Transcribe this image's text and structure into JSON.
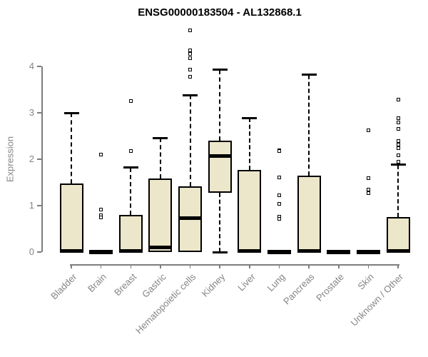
{
  "title": "ENSG00000183504 - AL132868.1",
  "colors": {
    "box_fill": "#ECE6CA",
    "box_border": "#000000",
    "axis": "#7d7d7d",
    "label_text": "#858585",
    "title_text": "#000000"
  },
  "chart_data": {
    "type": "boxplot",
    "title": "ENSG00000183504 - AL132868.1",
    "xlabel": "",
    "ylabel": "Expression",
    "yticks": [
      0,
      1,
      2,
      3,
      4
    ],
    "ylim": [
      0,
      4.85
    ],
    "grid": false,
    "legend": "none",
    "categories": [
      "Bladder",
      "Brain",
      "Breast",
      "Gastric",
      "Hematopoietic cells",
      "Kidney",
      "Liver",
      "Lung",
      "Pancreas",
      "Prostate",
      "Skin",
      "Unknown / Other"
    ],
    "series": [
      {
        "label": "Bladder",
        "q1": 0,
        "median": 0.02,
        "q3": 1.48,
        "whisker_low": 0,
        "whisker_high": 3.0,
        "outliers": []
      },
      {
        "label": "Brain",
        "q1": 0,
        "median": 0.01,
        "q3": 0.02,
        "whisker_low": 0,
        "whisker_high": 0.02,
        "outliers": [
          2.1,
          0.92,
          0.8,
          0.74
        ]
      },
      {
        "label": "Breast",
        "q1": 0,
        "median": 0.02,
        "q3": 0.8,
        "whisker_low": 0,
        "whisker_high": 1.82,
        "outliers": [
          3.25,
          2.17
        ]
      },
      {
        "label": "Gastric",
        "q1": 0,
        "median": 0.1,
        "q3": 1.58,
        "whisker_low": 0,
        "whisker_high": 2.46,
        "outliers": []
      },
      {
        "label": "Hematopoietic cells",
        "q1": 0,
        "median": 0.73,
        "q3": 1.42,
        "whisker_low": 0,
        "whisker_high": 3.38,
        "outliers": [
          4.77,
          4.35,
          4.27,
          4.17,
          3.93,
          3.78
        ]
      },
      {
        "label": "Kidney",
        "q1": 1.28,
        "median": 2.07,
        "q3": 2.4,
        "whisker_low": 0,
        "whisker_high": 3.93,
        "outliers": []
      },
      {
        "label": "Liver",
        "q1": 0,
        "median": 0.02,
        "q3": 1.77,
        "whisker_low": 0,
        "whisker_high": 2.89,
        "outliers": []
      },
      {
        "label": "Lung",
        "q1": 0,
        "median": 0.01,
        "q3": 0.02,
        "whisker_low": 0,
        "whisker_high": 0.02,
        "outliers": [
          2.2,
          2.17,
          1.61,
          1.22,
          1.04,
          0.76,
          0.72
        ]
      },
      {
        "label": "Pancreas",
        "q1": 0,
        "median": 0.02,
        "q3": 1.64,
        "whisker_low": 0,
        "whisker_high": 3.82,
        "outliers": []
      },
      {
        "label": "Prostate",
        "q1": 0,
        "median": 0.01,
        "q3": 0.02,
        "whisker_low": 0,
        "whisker_high": 0.02,
        "outliers": []
      },
      {
        "label": "Skin",
        "q1": 0,
        "median": 0.01,
        "q3": 0.02,
        "whisker_low": 0,
        "whisker_high": 0.02,
        "outliers": [
          2.63,
          1.6,
          1.35,
          1.27
        ]
      },
      {
        "label": "Unknown / Other",
        "q1": 0,
        "median": 0.02,
        "q3": 0.75,
        "whisker_low": 0,
        "whisker_high": 1.88,
        "outliers": [
          3.28,
          2.88,
          2.79,
          2.66,
          2.4,
          2.31,
          2.24,
          2.09,
          1.95
        ]
      }
    ]
  }
}
